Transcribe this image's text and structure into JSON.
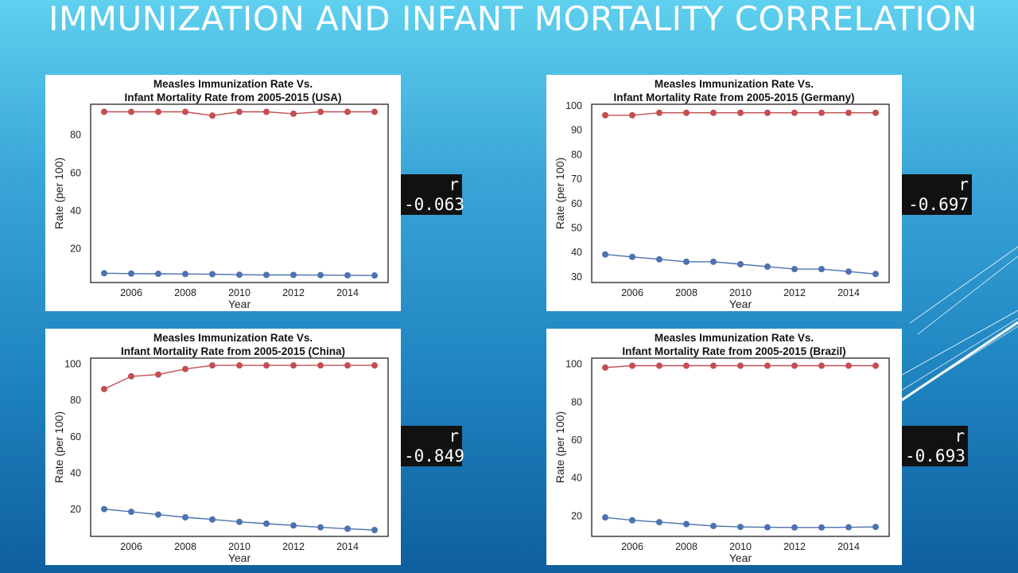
{
  "slide": {
    "title": "IMMUNIZATION AND INFANT MORTALITY CORRELATION"
  },
  "colors": {
    "immunization": "#c44e52",
    "mortality": "#4c72b0",
    "r_box_bg": "#111111"
  },
  "chart_data": [
    {
      "type": "line",
      "title_line1": "Measles Immunization Rate Vs.",
      "title_line2": "Infant Mortality Rate from 2005-2015 (USA)",
      "xlabel": "Year",
      "ylabel": "Rate (per 100)",
      "x": [
        2005,
        2006,
        2007,
        2008,
        2009,
        2010,
        2011,
        2012,
        2013,
        2014,
        2015
      ],
      "xticks": [
        2006,
        2008,
        2010,
        2012,
        2014
      ],
      "yticks": [
        20,
        40,
        60,
        80
      ],
      "xlim": [
        2004.5,
        2015.5
      ],
      "ylim": [
        2,
        96
      ],
      "grid": false,
      "series": [
        {
          "values": [
            92,
            92,
            92,
            92,
            90,
            92,
            92,
            91,
            92,
            92,
            92
          ]
        },
        {
          "values": [
            6.9,
            6.7,
            6.6,
            6.5,
            6.4,
            6.1,
            6.0,
            6.0,
            5.9,
            5.8,
            5.7
          ]
        }
      ],
      "correlation": {
        "label": "r",
        "value": "-0.063"
      }
    },
    {
      "type": "line",
      "title_line1": "Measles Immunization Rate Vs.",
      "title_line2": "Infant Mortality Rate from 2005-2015 (Germany)",
      "xlabel": "Year",
      "ylabel": "Rate (per 100)",
      "x": [
        2005,
        2006,
        2007,
        2008,
        2009,
        2010,
        2011,
        2012,
        2013,
        2014,
        2015
      ],
      "xticks": [
        2006,
        2008,
        2010,
        2012,
        2014
      ],
      "yticks": [
        30,
        40,
        50,
        60,
        70,
        80,
        90,
        100
      ],
      "xlim": [
        2004.5,
        2015.5
      ],
      "ylim": [
        27.5,
        100.5
      ],
      "grid": false,
      "series": [
        {
          "values": [
            96,
            96,
            97,
            97,
            97,
            97,
            97,
            97,
            97,
            97,
            97
          ]
        },
        {
          "values": [
            39,
            38,
            37,
            36,
            36,
            35,
            34,
            33,
            33,
            32,
            31
          ]
        }
      ],
      "correlation": {
        "label": "r",
        "value": "-0.697"
      }
    },
    {
      "type": "line",
      "title_line1": "Measles Immunization Rate Vs.",
      "title_line2": "Infant Mortality Rate from 2005-2015 (China)",
      "xlabel": "Year",
      "ylabel": "Rate (per 100)",
      "x": [
        2005,
        2006,
        2007,
        2008,
        2009,
        2010,
        2011,
        2012,
        2013,
        2014,
        2015
      ],
      "xticks": [
        2006,
        2008,
        2010,
        2012,
        2014
      ],
      "yticks": [
        20,
        40,
        60,
        80,
        100
      ],
      "xlim": [
        2004.5,
        2015.5
      ],
      "ylim": [
        5,
        103
      ],
      "grid": false,
      "series": [
        {
          "values": [
            86,
            93,
            94,
            97,
            99,
            99,
            99,
            99,
            99,
            99,
            99
          ]
        },
        {
          "values": [
            20,
            18.5,
            17,
            15.5,
            14.3,
            13,
            12,
            11,
            10,
            9.2,
            8.5
          ]
        }
      ],
      "correlation": {
        "label": "r",
        "value": "-0.849"
      }
    },
    {
      "type": "line",
      "title_line1": "Measles Immunization Rate Vs.",
      "title_line2": "Infant Mortality Rate from 2005-2015 (Brazil)",
      "xlabel": "Year",
      "ylabel": "Rate (per 100)",
      "x": [
        2005,
        2006,
        2007,
        2008,
        2009,
        2010,
        2011,
        2012,
        2013,
        2014,
        2015
      ],
      "xticks": [
        2006,
        2008,
        2010,
        2012,
        2014
      ],
      "yticks": [
        20,
        40,
        60,
        80,
        100
      ],
      "xlim": [
        2004.5,
        2015.5
      ],
      "ylim": [
        9,
        103
      ],
      "grid": false,
      "series": [
        {
          "values": [
            98,
            99,
            99,
            99,
            99,
            99,
            99,
            99,
            99,
            99,
            99
          ]
        },
        {
          "values": [
            19,
            17.5,
            16.5,
            15.5,
            14.5,
            14,
            13.8,
            13.7,
            13.7,
            13.8,
            14
          ]
        }
      ],
      "correlation": {
        "label": "r",
        "value": "-0.693"
      }
    }
  ]
}
